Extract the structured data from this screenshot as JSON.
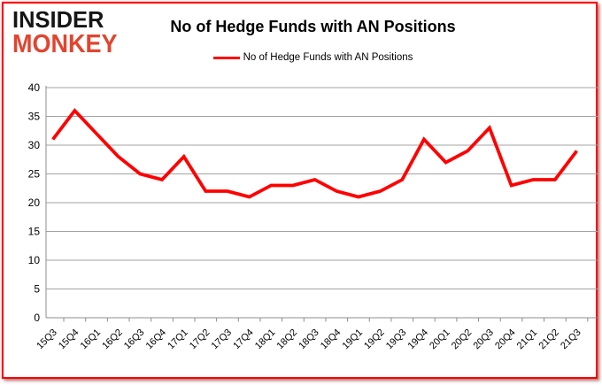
{
  "branding": {
    "line1": "INSIDER",
    "line2": "MONKEY",
    "line1_color": "#151515",
    "line2_color": "#e2452f"
  },
  "header": {
    "title": "No of Hedge Funds with AN Positions"
  },
  "legend": {
    "label": "No of Hedge Funds with AN Positions",
    "line_color": "#ff0000"
  },
  "chart_data": {
    "type": "line",
    "title": "No of Hedge Funds with AN Positions",
    "series_name": "No of Hedge Funds with AN Positions",
    "categories": [
      "15Q3",
      "15Q4",
      "16Q1",
      "16Q2",
      "16Q3",
      "16Q4",
      "17Q1",
      "17Q2",
      "17Q3",
      "17Q4",
      "18Q1",
      "18Q2",
      "18Q3",
      "18Q4",
      "19Q1",
      "19Q2",
      "19Q3",
      "19Q4",
      "20Q1",
      "20Q2",
      "20Q3",
      "20Q4",
      "21Q1",
      "21Q2",
      "21Q3"
    ],
    "values": [
      31,
      36,
      32,
      28,
      25,
      24,
      28,
      22,
      22,
      21,
      23,
      23,
      24,
      22,
      21,
      22,
      24,
      31,
      27,
      29,
      33,
      23,
      24,
      24,
      29
    ],
    "xlabel": "",
    "ylabel": "",
    "ylim": [
      0,
      40
    ],
    "yticks": [
      0,
      5,
      10,
      15,
      20,
      25,
      30,
      35,
      40
    ],
    "grid": "horizontal-only",
    "legend_position": "top-center",
    "line_color": "#ff0000",
    "line_width": 3.8,
    "gridline_color": "#a3a3a3",
    "axis_color": "#8c8c8c",
    "tick_label_color": "#000000"
  },
  "frame": {
    "border_color": "#fe0202"
  }
}
